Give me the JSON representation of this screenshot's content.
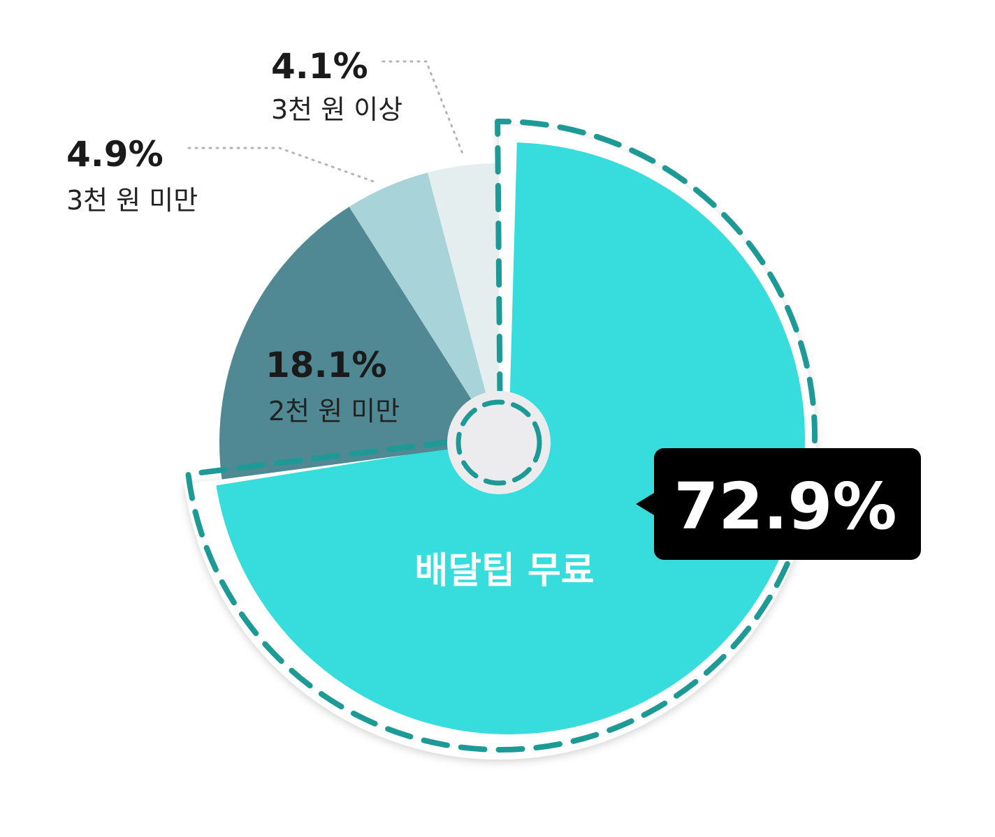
{
  "chart_data": {
    "type": "pie",
    "slices": [
      {
        "label": "배달팁 무료",
        "value": 72.9,
        "value_label": "72.9%",
        "color": "#37dcdc",
        "highlighted": true
      },
      {
        "label": "2천 원 미만",
        "value": 18.1,
        "value_label": "18.1%",
        "color": "#508893"
      },
      {
        "label": "3천 원 미만",
        "value": 4.9,
        "value_label": "4.9%",
        "color": "#a8d3d9"
      },
      {
        "label": "3천 원 이상",
        "value": 4.1,
        "value_label": "4.1%",
        "color": "#e4eeef"
      }
    ],
    "highlight_outline_color": "#1e9a96",
    "hole_color": "#ececef",
    "callout_background": "#000000",
    "leader_line_color": "#b3b3b3"
  }
}
